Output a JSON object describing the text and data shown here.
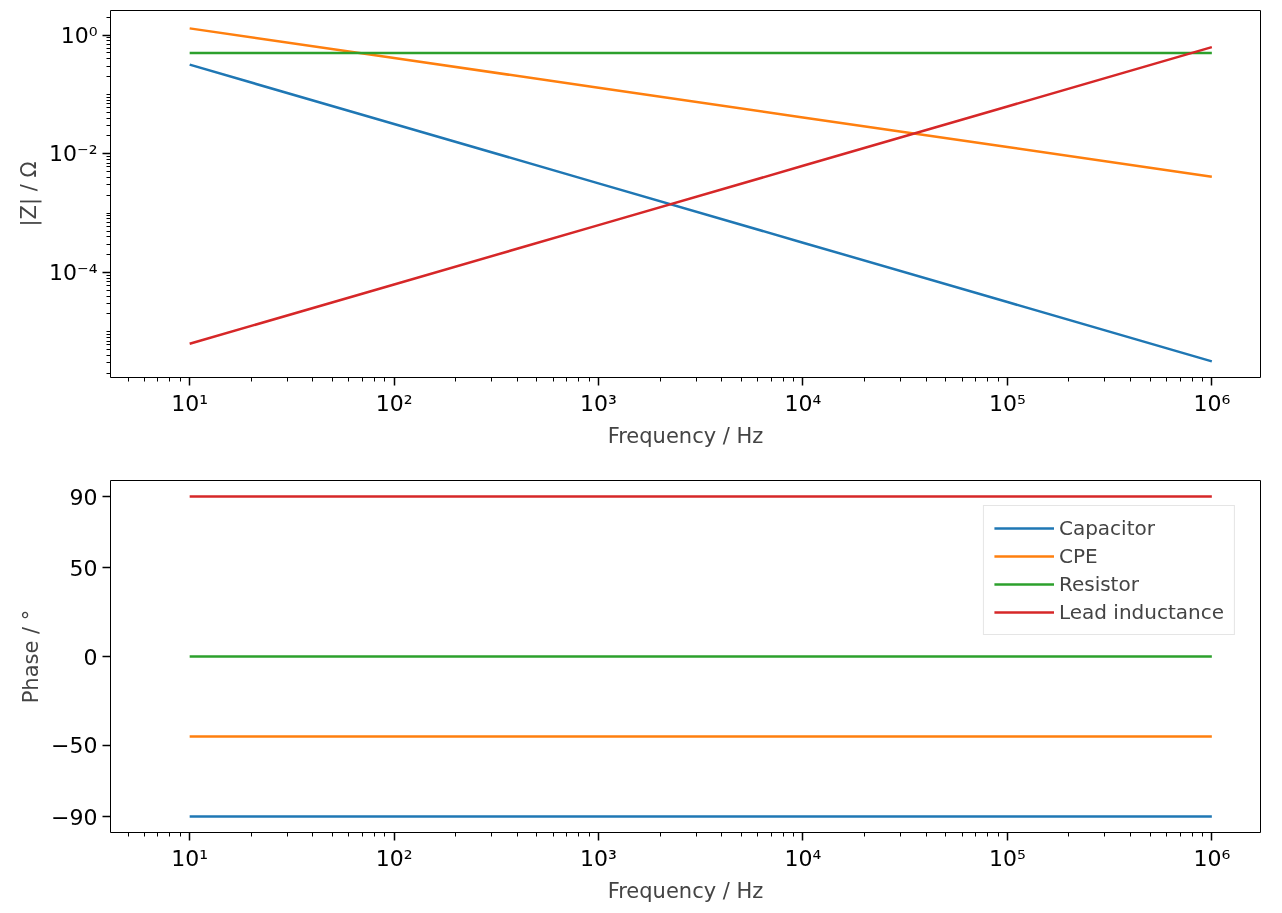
{
  "chart_data": [
    {
      "type": "line",
      "xlabel": "Frequency / Hz",
      "ylabel": "|Z| / Ω",
      "log": "xy",
      "grid": false,
      "legend": false,
      "x": [
        10,
        100,
        1000,
        10000,
        100000,
        1000000
      ],
      "xlim": [
        4.1,
        1730000
      ],
      "xticks": [
        {
          "value": 10,
          "label": "10¹"
        },
        {
          "value": 100,
          "label": "10²"
        },
        {
          "value": 1000,
          "label": "10³"
        },
        {
          "value": 10000,
          "label": "10⁴"
        },
        {
          "value": 100000,
          "label": "10⁵"
        },
        {
          "value": 1000000,
          "label": "10⁶"
        }
      ],
      "ylim": [
        1.7e-06,
        2.6
      ],
      "yticks": [
        {
          "value": 1,
          "label": "10⁰"
        },
        {
          "value": 0.01,
          "label": "10⁻²"
        },
        {
          "value": 0.0001,
          "label": "10⁻⁴"
        }
      ],
      "series": [
        {
          "color": "#1f77b4",
          "values": [
            0.318,
            0.0318,
            0.00318,
            0.000318,
            3.18e-05,
            3.18e-06
          ]
        },
        {
          "color": "#ff7f0e",
          "values": [
            1.3,
            0.41,
            0.13,
            0.041,
            0.013,
            0.0041
          ]
        },
        {
          "color": "#2ca02c",
          "values": [
            0.5,
            0.5,
            0.5,
            0.5,
            0.5,
            0.5
          ]
        },
        {
          "color": "#d62728",
          "values": [
            6.28e-06,
            6.28e-05,
            0.000628,
            0.00628,
            0.0628,
            0.628
          ]
        }
      ]
    },
    {
      "type": "line",
      "xlabel": "Frequency / Hz",
      "ylabel": "Phase / °",
      "log": "x",
      "grid": false,
      "legend": "top right",
      "x": [
        10,
        100,
        1000,
        10000,
        100000,
        1000000
      ],
      "xlim": [
        4.1,
        1730000
      ],
      "xticks": [
        {
          "value": 10,
          "label": "10¹"
        },
        {
          "value": 100,
          "label": "10²"
        },
        {
          "value": 1000,
          "label": "10³"
        },
        {
          "value": 10000,
          "label": "10⁴"
        },
        {
          "value": 100000,
          "label": "10⁵"
        },
        {
          "value": 1000000,
          "label": "10⁶"
        }
      ],
      "ylim": [
        -99,
        99
      ],
      "yticks": [
        {
          "value": -90,
          "label": "−90"
        },
        {
          "value": -50,
          "label": "−50"
        },
        0,
        50,
        90
      ],
      "series": [
        {
          "name": "Capacitor",
          "color": "#1f77b4",
          "values": [
            -90,
            -90,
            -90,
            -90,
            -90,
            -90
          ]
        },
        {
          "name": "CPE",
          "color": "#ff7f0e",
          "values": [
            -45,
            -45,
            -45,
            -45,
            -45,
            -45
          ]
        },
        {
          "name": "Resistor",
          "color": "#2ca02c",
          "values": [
            0,
            0,
            0,
            0,
            0,
            0
          ]
        },
        {
          "name": "Lead inductance",
          "color": "#d62728",
          "values": [
            90,
            90,
            90,
            90,
            90,
            90
          ]
        }
      ]
    }
  ]
}
